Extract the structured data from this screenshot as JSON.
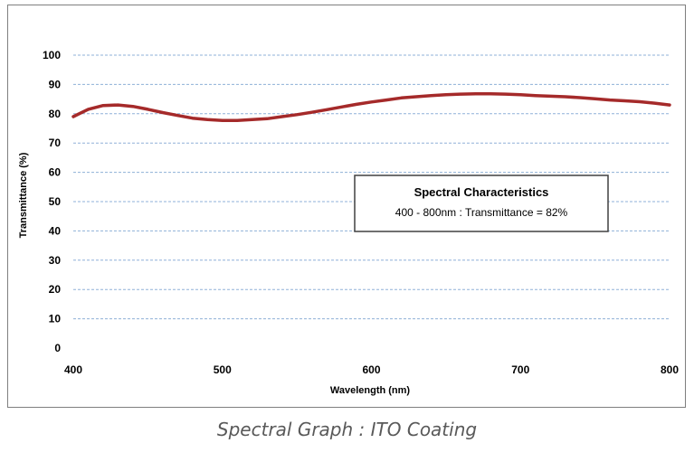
{
  "chart_data": {
    "type": "line",
    "xlabel": "Wavelength (nm)",
    "ylabel": "Transmittance (%)",
    "xlim": [
      400,
      800
    ],
    "ylim": [
      0,
      100
    ],
    "xticks": [
      400,
      500,
      600,
      700,
      800
    ],
    "yticks": [
      0,
      10,
      20,
      30,
      40,
      50,
      60,
      70,
      80,
      90,
      100
    ],
    "grid": "horizontal dashed",
    "series": [
      {
        "color": "#a52a2a",
        "x": [
          400,
          410,
          420,
          430,
          440,
          450,
          460,
          470,
          480,
          490,
          500,
          510,
          520,
          530,
          540,
          550,
          560,
          570,
          580,
          590,
          600,
          610,
          620,
          630,
          640,
          650,
          660,
          670,
          680,
          690,
          700,
          710,
          720,
          730,
          740,
          750,
          760,
          770,
          780,
          790,
          800
        ],
        "y": [
          79,
          81.5,
          82.8,
          83,
          82.5,
          81.5,
          80.4,
          79.4,
          78.5,
          78,
          77.7,
          77.7,
          78,
          78.3,
          79,
          79.7,
          80.5,
          81.4,
          82.3,
          83.2,
          84,
          84.7,
          85.4,
          85.8,
          86.2,
          86.5,
          86.7,
          86.8,
          86.8,
          86.7,
          86.5,
          86.2,
          86,
          85.8,
          85.5,
          85.1,
          84.7,
          84.4,
          84.1,
          83.6,
          83
        ]
      }
    ],
    "annotation": {
      "title": "Spectral Characteristics",
      "text": "400 - 800nm : Transmittance = 82%"
    }
  },
  "caption": "Spectral Graph : ITO Coating"
}
